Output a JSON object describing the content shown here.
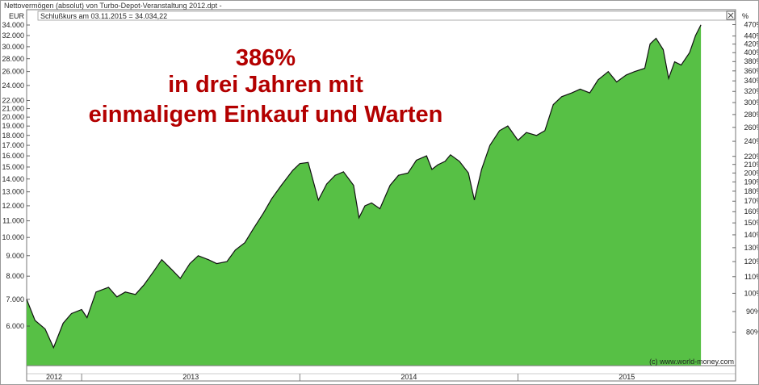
{
  "window": {
    "title": "Nettovermögen (absolut) von Turbo-Depot-Veranstaltung 2012.dpt -"
  },
  "chart_data": {
    "type": "area",
    "title": "386%",
    "subtitle_lines": [
      "in drei Jahren mit",
      "einmaligem Einkauf und Warten"
    ],
    "info_label": "Schlußkurs am 03.11.2015 = 34.034,22",
    "copyright": "(c) www.world-money.com",
    "left_axis": {
      "unit": "EUR",
      "scale": "log",
      "ticks": [
        6000,
        7000,
        8000,
        9000,
        10000,
        11000,
        12000,
        13000,
        14000,
        15000,
        16000,
        17000,
        18000,
        19000,
        20000,
        21000,
        22000,
        24000,
        26000,
        28000,
        30000,
        32000,
        34000
      ],
      "tick_labels": [
        "6.000",
        "7.000",
        "8.000",
        "9.000",
        "10.000",
        "11.000",
        "12.000",
        "13.000",
        "14.000",
        "15.000",
        "16.000",
        "17.000",
        "18.000",
        "19.000",
        "20.000",
        "21.000",
        "22.000",
        "24.000",
        "26.000",
        "28.000",
        "30.000",
        "32.000",
        "34.000"
      ]
    },
    "right_axis": {
      "unit": "%",
      "ticks": [
        80,
        90,
        100,
        110,
        120,
        130,
        140,
        150,
        160,
        170,
        180,
        190,
        200,
        210,
        220,
        240,
        260,
        280,
        300,
        320,
        340,
        360,
        380,
        400,
        420,
        440,
        470
      ],
      "tick_labels": [
        "80%",
        "90%",
        "100%",
        "110%",
        "120%",
        "130%",
        "140%",
        "150%",
        "160%",
        "170%",
        "180%",
        "190%",
        "200%",
        "210%",
        "220%",
        "240%",
        "260%",
        "280%",
        "300%",
        "320%",
        "340%",
        "360%",
        "380%",
        "400%",
        "420%",
        "440%",
        "470%"
      ]
    },
    "x_axis": {
      "labels": [
        "2012",
        "2013",
        "2014",
        "2015"
      ],
      "start": "2012-10-01",
      "end": "2015-12-31"
    },
    "series": [
      {
        "color": "#57c045",
        "points": [
          [
            "2012-10-01",
            7000
          ],
          [
            "2012-10-15",
            6200
          ],
          [
            "2012-11-01",
            5900
          ],
          [
            "2012-11-15",
            5300
          ],
          [
            "2012-12-01",
            6100
          ],
          [
            "2012-12-15",
            6450
          ],
          [
            "2013-01-01",
            6600
          ],
          [
            "2013-01-10",
            6300
          ],
          [
            "2013-01-25",
            7300
          ],
          [
            "2013-02-15",
            7500
          ],
          [
            "2013-03-01",
            7100
          ],
          [
            "2013-03-15",
            7300
          ],
          [
            "2013-04-01",
            7200
          ],
          [
            "2013-04-15",
            7600
          ],
          [
            "2013-05-01",
            8200
          ],
          [
            "2013-05-15",
            8800
          ],
          [
            "2013-06-01",
            8300
          ],
          [
            "2013-06-15",
            7900
          ],
          [
            "2013-07-01",
            8600
          ],
          [
            "2013-07-15",
            9000
          ],
          [
            "2013-08-01",
            8800
          ],
          [
            "2013-08-15",
            8600
          ],
          [
            "2013-09-01",
            8700
          ],
          [
            "2013-09-15",
            9300
          ],
          [
            "2013-10-01",
            9700
          ],
          [
            "2013-10-15",
            10500
          ],
          [
            "2013-11-01",
            11500
          ],
          [
            "2013-11-15",
            12500
          ],
          [
            "2013-12-01",
            13500
          ],
          [
            "2013-12-20",
            14700
          ],
          [
            "2014-01-01",
            15300
          ],
          [
            "2014-01-15",
            15400
          ],
          [
            "2014-02-01",
            12400
          ],
          [
            "2014-02-15",
            13600
          ],
          [
            "2014-03-01",
            14300
          ],
          [
            "2014-03-15",
            14600
          ],
          [
            "2014-04-01",
            13500
          ],
          [
            "2014-04-10",
            11200
          ],
          [
            "2014-04-20",
            12000
          ],
          [
            "2014-05-01",
            12200
          ],
          [
            "2014-05-15",
            11800
          ],
          [
            "2014-06-01",
            13500
          ],
          [
            "2014-06-15",
            14300
          ],
          [
            "2014-07-01",
            14500
          ],
          [
            "2014-07-15",
            15600
          ],
          [
            "2014-08-01",
            16000
          ],
          [
            "2014-08-10",
            14800
          ],
          [
            "2014-08-20",
            15200
          ],
          [
            "2014-09-01",
            15500
          ],
          [
            "2014-09-10",
            16100
          ],
          [
            "2014-09-25",
            15500
          ],
          [
            "2014-10-10",
            14500
          ],
          [
            "2014-10-20",
            12400
          ],
          [
            "2014-11-01",
            14800
          ],
          [
            "2014-11-15",
            17000
          ],
          [
            "2014-12-01",
            18500
          ],
          [
            "2014-12-15",
            19000
          ],
          [
            "2015-01-01",
            17500
          ],
          [
            "2015-01-15",
            18300
          ],
          [
            "2015-02-01",
            18000
          ],
          [
            "2015-02-15",
            18500
          ],
          [
            "2015-03-01",
            21500
          ],
          [
            "2015-03-15",
            22500
          ],
          [
            "2015-04-01",
            23000
          ],
          [
            "2015-04-15",
            23500
          ],
          [
            "2015-05-01",
            23000
          ],
          [
            "2015-05-15",
            24800
          ],
          [
            "2015-06-01",
            26000
          ],
          [
            "2015-06-15",
            24500
          ],
          [
            "2015-07-01",
            25500
          ],
          [
            "2015-07-15",
            26000
          ],
          [
            "2015-08-01",
            26500
          ],
          [
            "2015-08-10",
            30500
          ],
          [
            "2015-08-20",
            31500
          ],
          [
            "2015-09-01",
            29500
          ],
          [
            "2015-09-10",
            25000
          ],
          [
            "2015-09-20",
            27500
          ],
          [
            "2015-10-01",
            27000
          ],
          [
            "2015-10-15",
            29000
          ],
          [
            "2015-10-25",
            32000
          ],
          [
            "2015-11-03",
            34034
          ]
        ]
      }
    ]
  }
}
